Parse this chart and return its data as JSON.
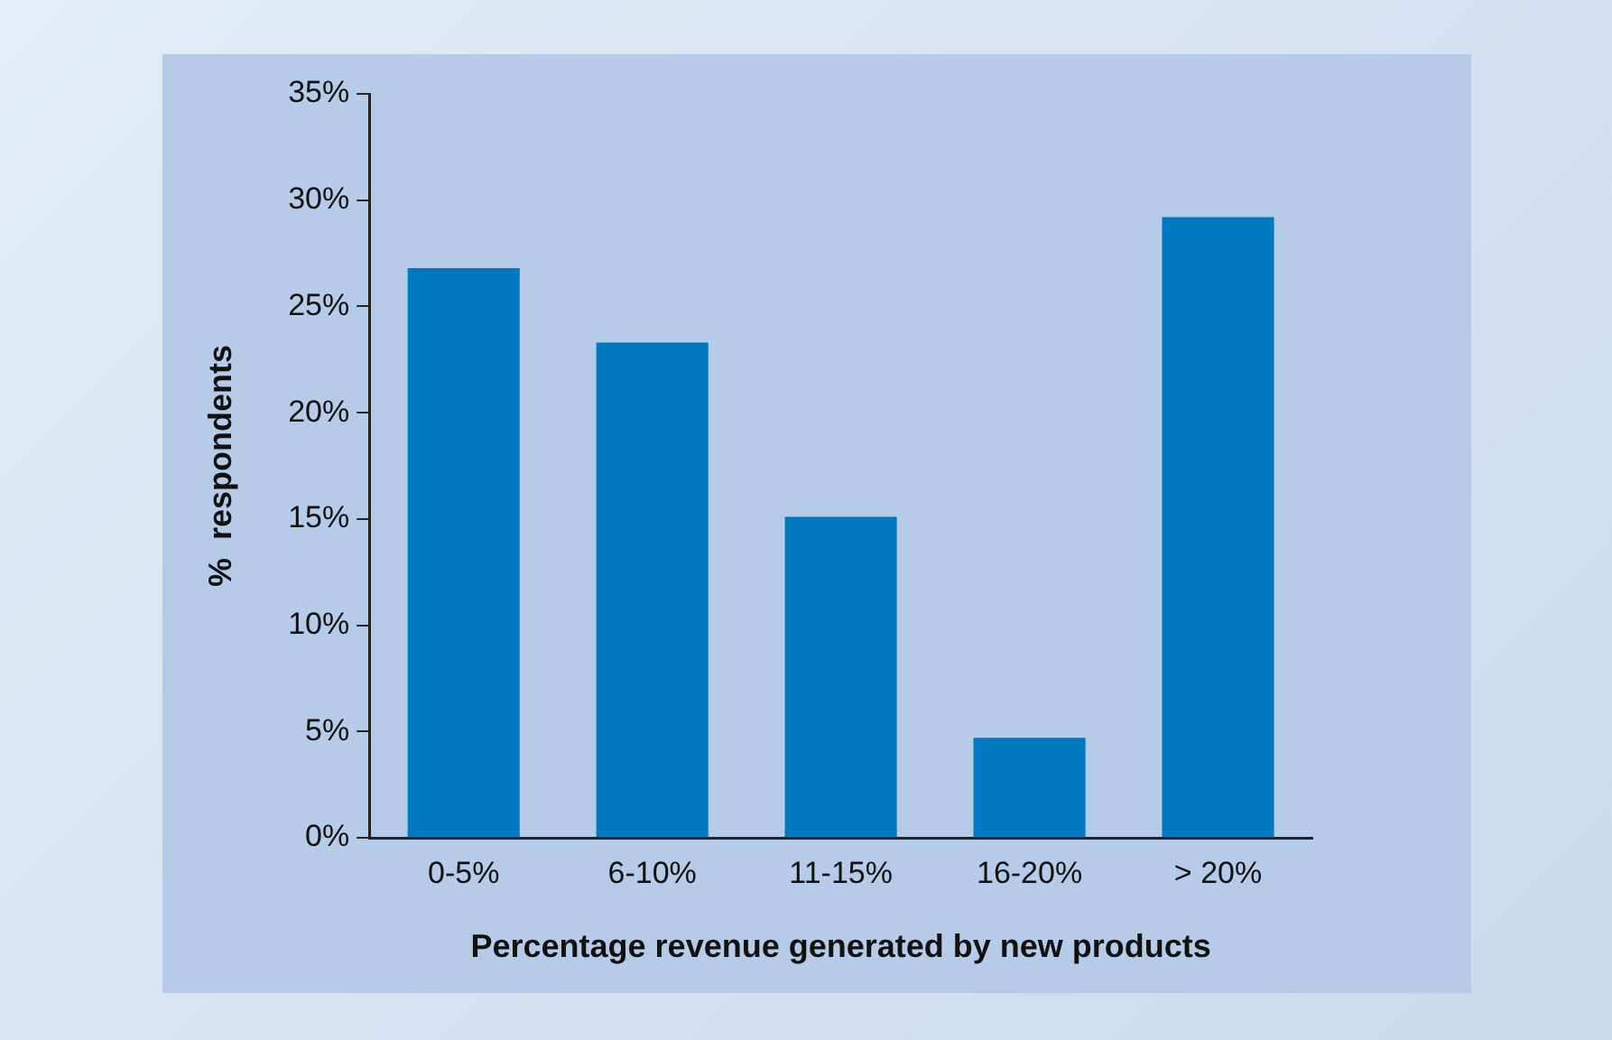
{
  "chart_data": {
    "type": "bar",
    "xlabel": "Percentage revenue generated by new products",
    "ylabel": "%  respondents",
    "categories": [
      "0-5%",
      "6-10%",
      "11-15%",
      "16-20%",
      "> 20%"
    ],
    "values": [
      26.8,
      23.3,
      15.1,
      4.7,
      29.2
    ],
    "color": "#0079c1",
    "ylim": [
      0,
      35
    ],
    "yticks": [
      {
        "value": 0,
        "label": "0%"
      },
      {
        "value": 5,
        "label": "5%"
      },
      {
        "value": 10,
        "label": "10%"
      },
      {
        "value": 15,
        "label": "15%"
      },
      {
        "value": 20,
        "label": "20%"
      },
      {
        "value": 25,
        "label": "25%"
      },
      {
        "value": 30,
        "label": "30%"
      },
      {
        "value": 35,
        "label": "35%"
      }
    ],
    "grid": false,
    "legend": false
  }
}
